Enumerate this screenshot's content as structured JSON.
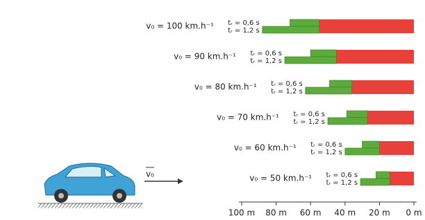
{
  "chart_data": {
    "type": "stopping-bar",
    "categories": [
      "v₀ = 100 km.h⁻¹",
      "v₀ = 90 km.h⁻¹",
      "v₀ = 80 km.h⁻¹",
      "v₀ = 70 km.h⁻¹",
      "v₀ = 60 km.h⁻¹",
      "v₀ = 50 km.h⁻¹"
    ],
    "reaction_labels": [
      "tᵣ = 0,6 s",
      "tᵣ = 1,2 s"
    ],
    "series": [
      {
        "color": "#5dab3c",
        "values": [
          17,
          15,
          13,
          12,
          10,
          8
        ]
      },
      {
        "color": "#5dab3c",
        "values": [
          33,
          30,
          27,
          23,
          20,
          17
        ]
      },
      {
        "color": "#e8413c",
        "values": [
          55,
          45,
          36,
          27,
          20,
          14
        ]
      }
    ],
    "xlim": [
      100,
      0
    ],
    "xticks": [
      {
        "value": 100,
        "label": "100 m"
      },
      {
        "value": 80,
        "label": "80 m"
      },
      {
        "value": 60,
        "label": "60 m"
      },
      {
        "value": 40,
        "label": "40 m"
      },
      {
        "value": 20,
        "label": "20 m"
      },
      {
        "value": 0,
        "label": "0 m"
      }
    ],
    "arrow_label": "v₀"
  }
}
